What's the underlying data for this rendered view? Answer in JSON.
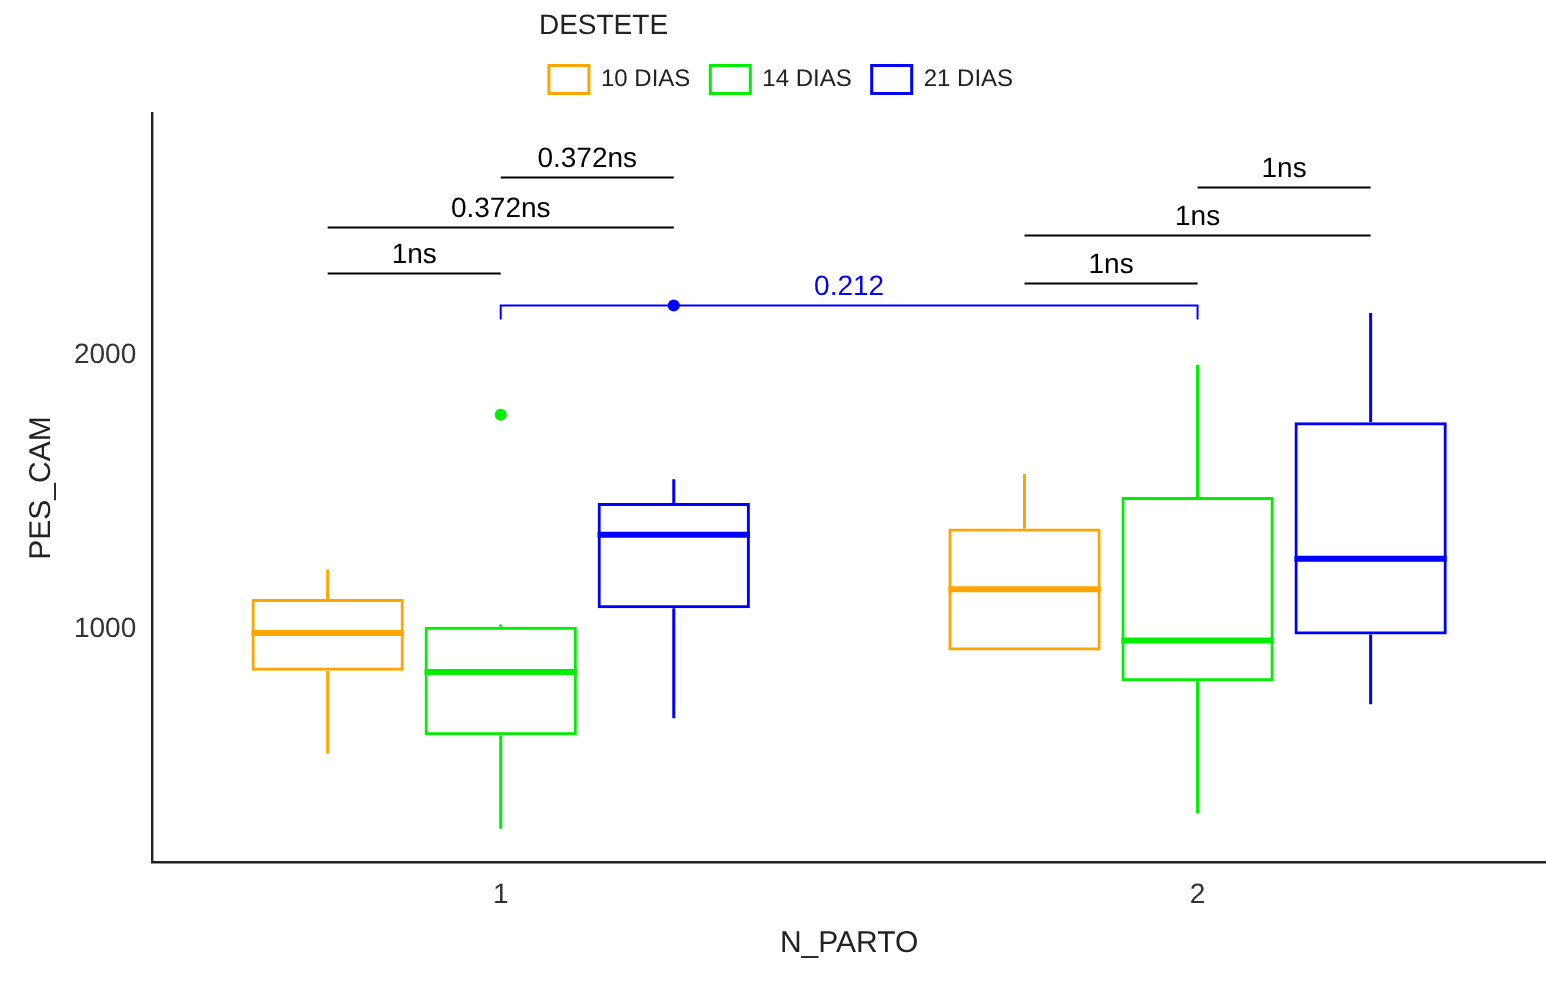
{
  "chart_data": {
    "type": "box",
    "xlabel": "N_PARTO",
    "ylabel": "PES_CAM",
    "legend_title": "DESTETE",
    "categories": [
      "1",
      "2"
    ],
    "series": [
      {
        "name": "10 DIAS",
        "color": "#ffa500",
        "boxes": [
          {
            "low": 547,
            "q1": 849,
            "median": 986,
            "q3": 1110,
            "high": 1218
          },
          {
            "low": 923,
            "q1": 923,
            "median": 1146,
            "q3": 1367,
            "high": 1566
          }
        ]
      },
      {
        "name": "14 DIAS",
        "color": "#00ee00",
        "boxes": [
          {
            "low": 273,
            "q1": 614,
            "median": 844,
            "q3": 1009,
            "high": 1017,
            "outliers": [
              1782
            ]
          },
          {
            "low": 329,
            "q1": 810,
            "median": 959,
            "q3": 1482,
            "high": 1964
          }
        ]
      },
      {
        "name": "21 DIAS",
        "color": "#0000ff",
        "boxes": [
          {
            "low": 676,
            "q1": 1077,
            "median": 1345,
            "q3": 1460,
            "high": 1547
          },
          {
            "low": 727,
            "q1": 981,
            "median": 1257,
            "q3": 1755,
            "high": 2153
          }
        ]
      }
    ],
    "ylim": [
      150,
      2880
    ],
    "yticks": [
      1000,
      2000
    ],
    "grid": false,
    "legend": "top",
    "annotations": [
      "0.372ns",
      "1ns",
      "0.372ns",
      "1ns",
      "1ns",
      "1ns",
      "0.212"
    ]
  }
}
